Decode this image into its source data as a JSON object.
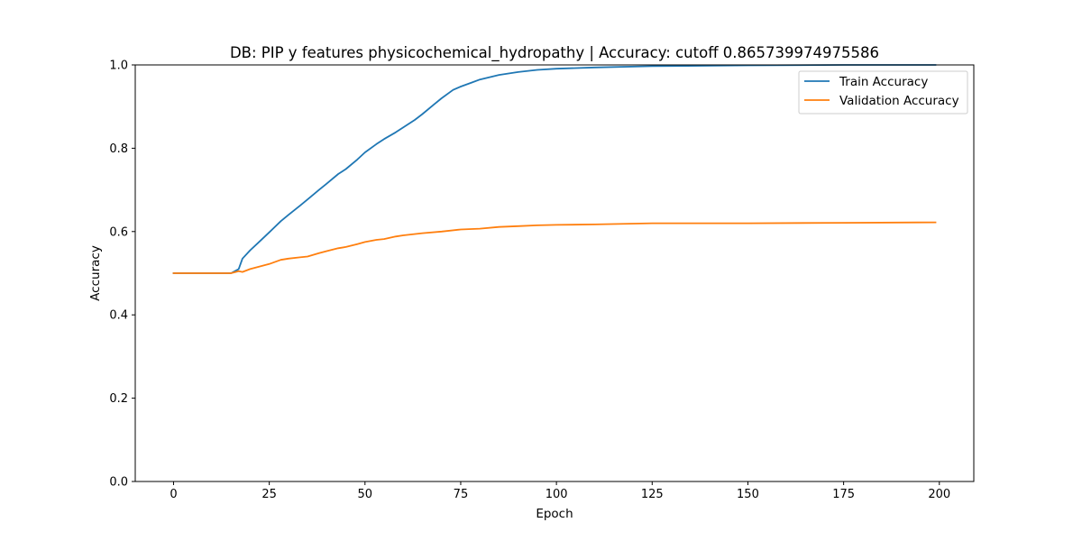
{
  "chart_data": {
    "type": "line",
    "title": "DB: PIP y features physicochemical_hydropathy | Accuracy: cutoff 0.865739974975586",
    "xlabel": "Epoch",
    "ylabel": "Accuracy",
    "xlim": [
      -10,
      209
    ],
    "ylim": [
      0.0,
      1.0
    ],
    "xticks": [
      0,
      25,
      50,
      75,
      100,
      125,
      150,
      175,
      200
    ],
    "xtick_labels": [
      "0",
      "25",
      "50",
      "75",
      "100",
      "125",
      "150",
      "175",
      "200"
    ],
    "yticks": [
      0.0,
      0.2,
      0.4,
      0.6,
      0.8,
      1.0
    ],
    "ytick_labels": [
      "0.0",
      "0.2",
      "0.4",
      "0.6",
      "0.8",
      "1.0"
    ],
    "grid": false,
    "legend_position": "top-right",
    "series": [
      {
        "name": "Train Accuracy",
        "color": "#1f77b4",
        "points": [
          [
            0,
            0.5
          ],
          [
            15,
            0.5
          ],
          [
            17,
            0.51
          ],
          [
            18,
            0.535
          ],
          [
            20,
            0.555
          ],
          [
            22,
            0.572
          ],
          [
            25,
            0.598
          ],
          [
            28,
            0.625
          ],
          [
            30,
            0.64
          ],
          [
            33,
            0.662
          ],
          [
            35,
            0.677
          ],
          [
            38,
            0.7
          ],
          [
            40,
            0.715
          ],
          [
            43,
            0.738
          ],
          [
            45,
            0.75
          ],
          [
            48,
            0.773
          ],
          [
            50,
            0.79
          ],
          [
            53,
            0.81
          ],
          [
            55,
            0.822
          ],
          [
            58,
            0.838
          ],
          [
            60,
            0.85
          ],
          [
            63,
            0.868
          ],
          [
            65,
            0.882
          ],
          [
            68,
            0.905
          ],
          [
            70,
            0.92
          ],
          [
            73,
            0.94
          ],
          [
            75,
            0.948
          ],
          [
            78,
            0.958
          ],
          [
            80,
            0.965
          ],
          [
            85,
            0.976
          ],
          [
            90,
            0.983
          ],
          [
            95,
            0.988
          ],
          [
            100,
            0.991
          ],
          [
            110,
            0.994
          ],
          [
            125,
            0.997
          ],
          [
            150,
            0.999
          ],
          [
            175,
            1.0
          ],
          [
            199,
            1.0
          ]
        ]
      },
      {
        "name": "Validation Accuracy",
        "color": "#ff7f0e",
        "points": [
          [
            0,
            0.5
          ],
          [
            15,
            0.5
          ],
          [
            17,
            0.505
          ],
          [
            18,
            0.503
          ],
          [
            20,
            0.51
          ],
          [
            22,
            0.515
          ],
          [
            25,
            0.522
          ],
          [
            28,
            0.532
          ],
          [
            30,
            0.535
          ],
          [
            33,
            0.538
          ],
          [
            35,
            0.54
          ],
          [
            38,
            0.548
          ],
          [
            40,
            0.553
          ],
          [
            43,
            0.56
          ],
          [
            45,
            0.563
          ],
          [
            48,
            0.57
          ],
          [
            50,
            0.575
          ],
          [
            53,
            0.58
          ],
          [
            55,
            0.582
          ],
          [
            58,
            0.588
          ],
          [
            60,
            0.591
          ],
          [
            65,
            0.596
          ],
          [
            70,
            0.6
          ],
          [
            75,
            0.605
          ],
          [
            80,
            0.607
          ],
          [
            85,
            0.611
          ],
          [
            90,
            0.613
          ],
          [
            95,
            0.615
          ],
          [
            100,
            0.616
          ],
          [
            110,
            0.617
          ],
          [
            125,
            0.62
          ],
          [
            150,
            0.62
          ],
          [
            175,
            0.621
          ],
          [
            199,
            0.622
          ]
        ]
      }
    ]
  }
}
